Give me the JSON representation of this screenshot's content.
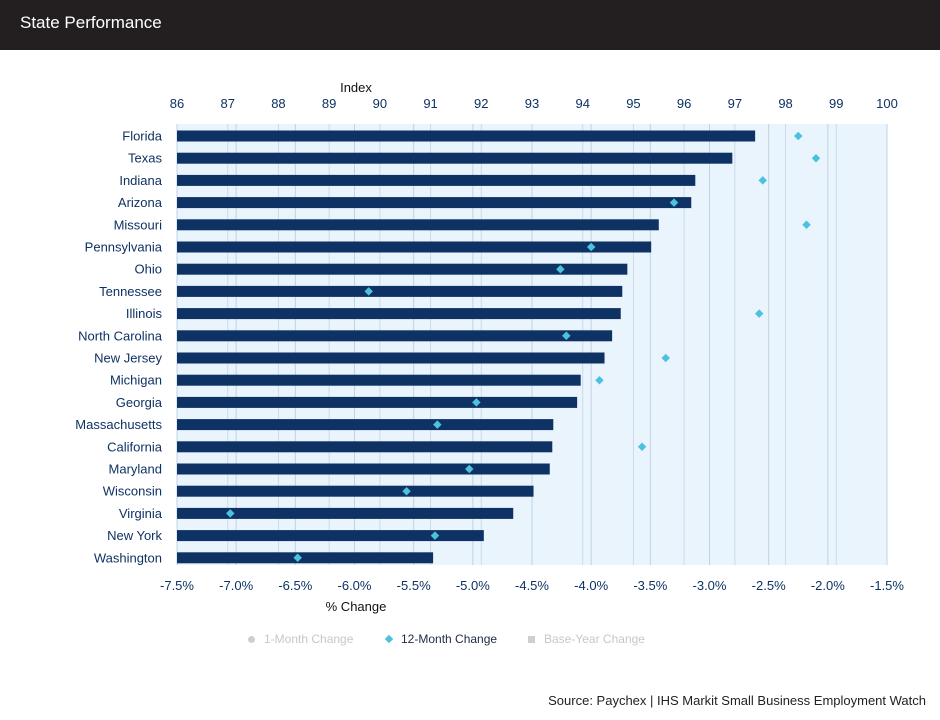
{
  "header": {
    "title": "State Performance"
  },
  "legend": {
    "items": [
      {
        "label": "1-Month Change",
        "icon": "circle-icon",
        "active": false
      },
      {
        "label": "12-Month Change",
        "icon": "diamond-icon",
        "active": true
      },
      {
        "label": "Base-Year Change",
        "icon": "square-icon",
        "active": false
      }
    ]
  },
  "source": "Source: Paychex | IHS Markit Small Business Employment Watch",
  "colors": {
    "header_bg": "#231f20",
    "bar": "#0e3263",
    "diamond": "#4cc1e0",
    "plot_bg": "#eaf4fc",
    "axis_text": "#0e3263"
  },
  "chart_data": {
    "type": "bar",
    "orientation": "horizontal",
    "top_axis": {
      "label": "Index",
      "range": [
        86,
        100
      ],
      "ticks": [
        "86",
        "87",
        "88",
        "89",
        "90",
        "91",
        "92",
        "93",
        "94",
        "95",
        "96",
        "97",
        "98",
        "99",
        "100"
      ]
    },
    "bottom_axis": {
      "label": "% Change",
      "range": [
        -7.5,
        -1.5
      ],
      "ticks": [
        "-7.5%",
        "-7.0%",
        "-6.5%",
        "-6.0%",
        "-5.5%",
        "-5.0%",
        "-4.5%",
        "-4.0%",
        "-3.5%",
        "-3.0%",
        "-2.5%",
        "-2.0%",
        "-1.5%"
      ]
    },
    "grid": true,
    "categories": [
      "Florida",
      "Texas",
      "Indiana",
      "Arizona",
      "Missouri",
      "Pennsylvania",
      "Ohio",
      "Tennessee",
      "Illinois",
      "North Carolina",
      "New Jersey",
      "Michigan",
      "Georgia",
      "Massachusetts",
      "California",
      "Maryland",
      "Wisconsin",
      "Virginia",
      "New York",
      "Washington"
    ],
    "series": [
      {
        "name": "Index",
        "type": "bar",
        "axis": "top",
        "values": [
          97.4,
          96.95,
          96.22,
          96.14,
          95.5,
          95.35,
          94.88,
          94.78,
          94.75,
          94.58,
          94.43,
          93.96,
          93.89,
          93.42,
          93.4,
          93.35,
          93.03,
          92.63,
          92.05,
          91.05
        ]
      },
      {
        "name": "12-Month Change",
        "type": "scatter",
        "axis": "bottom",
        "values": [
          -2.25,
          -2.1,
          -2.55,
          -3.3,
          -2.18,
          -4.0,
          -4.26,
          -5.88,
          -2.58,
          -4.21,
          -3.37,
          -3.93,
          -4.97,
          -5.3,
          -3.57,
          -5.03,
          -5.56,
          -7.05,
          -5.32,
          -6.48
        ]
      }
    ]
  }
}
